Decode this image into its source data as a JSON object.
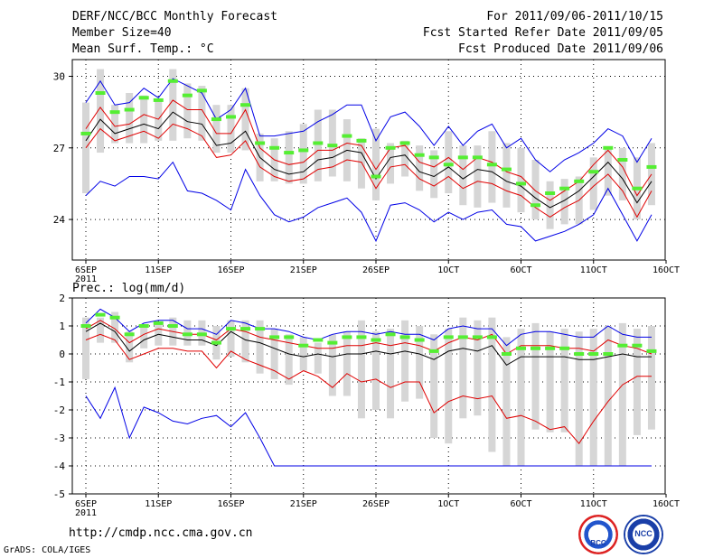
{
  "header": {
    "left": [
      "DERF/NCC/BCC Monthly Forecast",
      "Member Size=40",
      "Mean Surf. Temp.: °C"
    ],
    "right": [
      "For 2011/09/06-2011/10/15",
      "Fcst Started Refer Date 2011/09/05",
      "Fcst Produced Date 2011/09/06"
    ]
  },
  "footer": {
    "url": "http://cmdp.ncc.cma.gov.cn",
    "credit": "GrADS: COLA/IGES"
  },
  "logos": [
    {
      "icon": "bcc-logo-icon",
      "label": "BCC"
    },
    {
      "icon": "ncc-logo-icon",
      "label": "NCC"
    }
  ],
  "colors": {
    "mean": "#000000",
    "sd": "#e00000",
    "extreme": "#0000e6",
    "bar": "#d6d6d6",
    "dash": "#55ee33",
    "grid": "#000000"
  },
  "chart_data": [
    {
      "type": "line",
      "title": "Mean Surf. Temp.: °C",
      "x_tick_labels": [
        "6SEP",
        "11SEP",
        "16SEP",
        "21SEP",
        "26SEP",
        "1OCT",
        "6OCT",
        "11OCT",
        "16OCT"
      ],
      "x_sub_label": "2011",
      "x_tick_days": [
        0,
        5,
        10,
        15,
        20,
        25,
        30,
        35,
        40
      ],
      "xlim": [
        0,
        40
      ],
      "ylim": [
        22.3,
        30.7
      ],
      "y_ticks": [
        24,
        27,
        30
      ],
      "days": [
        0,
        1,
        2,
        3,
        4,
        5,
        6,
        7,
        8,
        9,
        10,
        11,
        12,
        13,
        14,
        15,
        16,
        17,
        18,
        19,
        20,
        21,
        22,
        23,
        24,
        25,
        26,
        27,
        28,
        29,
        30,
        31,
        32,
        33,
        34,
        35,
        36,
        37,
        38,
        39
      ],
      "series": [
        {
          "name": "max",
          "color": "#0000e6",
          "values": [
            28.9,
            29.8,
            28.8,
            28.9,
            29.5,
            29.1,
            29.9,
            29.6,
            29.3,
            28.2,
            28.6,
            29.5,
            27.5,
            27.5,
            27.6,
            27.7,
            28.1,
            28.4,
            28.8,
            28.8,
            27.3,
            28.3,
            28.5,
            27.9,
            27.1,
            27.9,
            27.1,
            27.7,
            28.0,
            27.0,
            27.4,
            26.5,
            26.0,
            26.5,
            26.8,
            27.2,
            27.8,
            27.5,
            26.4,
            27.4
          ]
        },
        {
          "name": "mean+sd",
          "color": "#e00000",
          "values": [
            27.8,
            28.7,
            27.9,
            28.0,
            28.4,
            28.2,
            29.0,
            28.6,
            28.6,
            27.6,
            27.6,
            28.6,
            27.0,
            26.5,
            26.3,
            26.4,
            26.9,
            26.9,
            27.2,
            27.1,
            26.1,
            27.0,
            27.1,
            26.4,
            26.2,
            26.6,
            26.1,
            26.6,
            26.4,
            26.0,
            25.8,
            25.2,
            24.8,
            25.2,
            25.6,
            26.3,
            26.9,
            26.2,
            25.0,
            25.9
          ]
        },
        {
          "name": "mean",
          "color": "#000000",
          "values": [
            27.3,
            28.2,
            27.6,
            27.8,
            28.0,
            27.8,
            28.5,
            28.1,
            28.0,
            27.1,
            27.2,
            27.7,
            26.6,
            26.1,
            25.9,
            26.0,
            26.5,
            26.6,
            26.9,
            26.8,
            25.7,
            26.6,
            26.7,
            26.0,
            25.8,
            26.2,
            25.7,
            26.1,
            26.0,
            25.6,
            25.4,
            24.9,
            24.5,
            24.8,
            25.2,
            25.8,
            26.4,
            25.7,
            24.7,
            25.6
          ]
        },
        {
          "name": "mean-sd",
          "color": "#e00000",
          "values": [
            27.0,
            27.8,
            27.3,
            27.5,
            27.7,
            27.4,
            28.0,
            27.8,
            27.5,
            26.6,
            26.7,
            27.3,
            26.2,
            25.8,
            25.6,
            25.7,
            26.1,
            26.2,
            26.5,
            26.4,
            25.3,
            26.2,
            26.3,
            25.7,
            25.4,
            25.8,
            25.3,
            25.6,
            25.5,
            25.2,
            25.0,
            24.5,
            24.1,
            24.5,
            24.8,
            25.4,
            25.9,
            25.2,
            24.1,
            25.2
          ]
        },
        {
          "name": "min",
          "color": "#0000e6",
          "values": [
            25.0,
            25.6,
            25.4,
            25.8,
            25.8,
            25.7,
            26.4,
            25.2,
            25.1,
            24.8,
            24.4,
            26.1,
            25.0,
            24.2,
            23.9,
            24.1,
            24.5,
            24.7,
            24.9,
            24.3,
            23.1,
            24.6,
            24.7,
            24.4,
            23.9,
            24.3,
            24.0,
            24.3,
            24.4,
            23.8,
            23.7,
            23.1,
            23.3,
            23.5,
            23.8,
            24.2,
            25.3,
            24.2,
            23.1,
            24.2
          ]
        },
        {
          "name": "bar_top",
          "color": "#d6d6d6",
          "values": [
            28.9,
            30.3,
            28.8,
            29.3,
            29.2,
            29.0,
            30.3,
            29.7,
            29.6,
            28.8,
            28.8,
            29.5,
            27.6,
            27.4,
            27.7,
            28.0,
            28.6,
            28.6,
            28.2,
            27.4,
            27.8,
            27.2,
            27.3,
            27.1,
            26.9,
            27.7,
            27.1,
            27.1,
            27.7,
            27.2,
            27.0,
            26.5,
            25.6,
            25.7,
            25.8,
            26.6,
            27.0,
            27.0,
            26.6,
            27.2
          ]
        },
        {
          "name": "bar_bottom",
          "color": "#d6d6d6",
          "values": [
            25.1,
            26.8,
            27.2,
            27.2,
            27.2,
            27.3,
            27.3,
            27.4,
            27.3,
            26.8,
            26.8,
            26.9,
            25.6,
            25.6,
            25.5,
            25.5,
            25.6,
            25.8,
            25.6,
            25.3,
            24.8,
            25.5,
            25.8,
            25.2,
            24.9,
            25.1,
            24.6,
            24.5,
            24.7,
            24.5,
            24.3,
            24.0,
            23.6,
            23.8,
            23.8,
            24.4,
            25.0,
            24.8,
            24.0,
            24.6
          ]
        },
        {
          "name": "hindcast_dash",
          "color": "#55ee33",
          "values": [
            27.6,
            29.3,
            28.5,
            28.6,
            29.1,
            29.0,
            29.8,
            29.2,
            29.4,
            28.2,
            28.3,
            28.8,
            27.2,
            27.0,
            26.8,
            26.9,
            27.2,
            27.1,
            27.5,
            27.3,
            25.8,
            27.0,
            27.2,
            26.7,
            26.6,
            26.3,
            26.6,
            26.6,
            26.3,
            26.1,
            25.5,
            24.6,
            25.1,
            25.3,
            25.6,
            26.0,
            27.0,
            26.5,
            25.3,
            26.2
          ]
        }
      ]
    },
    {
      "type": "line",
      "title": "Prec.: log(mm/d)",
      "x_tick_labels": [
        "6SEP",
        "11SEP",
        "16SEP",
        "21SEP",
        "26SEP",
        "1OCT",
        "6OCT",
        "11OCT",
        "16OCT"
      ],
      "x_sub_label": "2011",
      "x_tick_days": [
        0,
        5,
        10,
        15,
        20,
        25,
        30,
        35,
        40
      ],
      "xlim": [
        0,
        40
      ],
      "ylim": [
        -5,
        2
      ],
      "y_ticks": [
        -5,
        -4,
        -3,
        -2,
        -1,
        0,
        1,
        2
      ],
      "days": [
        0,
        1,
        2,
        3,
        4,
        5,
        6,
        7,
        8,
        9,
        10,
        11,
        12,
        13,
        14,
        15,
        16,
        17,
        18,
        19,
        20,
        21,
        22,
        23,
        24,
        25,
        26,
        27,
        28,
        29,
        30,
        31,
        32,
        33,
        34,
        35,
        36,
        37,
        38,
        39
      ],
      "series": [
        {
          "name": "max",
          "color": "#0000e6",
          "values": [
            1.1,
            1.6,
            1.3,
            0.8,
            1.1,
            1.2,
            1.2,
            0.9,
            0.9,
            0.7,
            1.2,
            1.1,
            0.9,
            0.9,
            0.8,
            0.6,
            0.5,
            0.7,
            0.8,
            0.8,
            0.7,
            0.8,
            0.7,
            0.7,
            0.5,
            0.9,
            1.0,
            0.9,
            0.9,
            0.3,
            0.7,
            0.8,
            0.8,
            0.7,
            0.6,
            0.6,
            1.0,
            0.7,
            0.6,
            0.6
          ]
        },
        {
          "name": "mean+sd",
          "color": "#e00000",
          "values": [
            0.9,
            1.2,
            0.9,
            0.4,
            0.7,
            0.9,
            0.8,
            0.7,
            0.7,
            0.5,
            0.9,
            0.8,
            0.6,
            0.5,
            0.4,
            0.3,
            0.2,
            0.2,
            0.3,
            0.3,
            0.4,
            0.3,
            0.4,
            0.3,
            0.1,
            0.4,
            0.6,
            0.5,
            0.7,
            0.0,
            0.3,
            0.3,
            0.3,
            0.2,
            0.2,
            0.1,
            0.5,
            0.3,
            0.2,
            0.0
          ]
        },
        {
          "name": "mean",
          "color": "#000000",
          "values": [
            0.8,
            1.1,
            0.8,
            0.1,
            0.5,
            0.7,
            0.6,
            0.5,
            0.5,
            0.3,
            0.8,
            0.5,
            0.4,
            0.2,
            0.0,
            -0.1,
            0.0,
            -0.1,
            0.0,
            0.0,
            0.1,
            0.0,
            0.1,
            0.0,
            -0.2,
            0.1,
            0.2,
            0.1,
            0.3,
            -0.4,
            -0.1,
            -0.1,
            -0.1,
            -0.1,
            -0.2,
            -0.2,
            -0.1,
            0.0,
            -0.1,
            -0.1
          ]
        },
        {
          "name": "mean-sd",
          "color": "#e00000",
          "values": [
            0.5,
            0.7,
            0.5,
            -0.2,
            0.0,
            0.2,
            0.2,
            0.1,
            0.1,
            -0.5,
            0.1,
            -0.2,
            -0.4,
            -0.6,
            -0.9,
            -0.6,
            -0.8,
            -1.2,
            -0.7,
            -1.0,
            -0.9,
            -1.2,
            -1.0,
            -1.0,
            -2.1,
            -1.7,
            -1.5,
            -1.6,
            -1.5,
            -2.3,
            -2.2,
            -2.4,
            -2.7,
            -2.6,
            -3.2,
            -2.4,
            -1.7,
            -1.1,
            -0.8,
            -0.8
          ]
        },
        {
          "name": "min",
          "color": "#0000e6",
          "values": [
            -1.5,
            -2.3,
            -1.2,
            -3.0,
            -1.9,
            -2.1,
            -2.4,
            -2.5,
            -2.3,
            -2.2,
            -2.6,
            -2.1,
            -3.0,
            -4.0,
            -4.0,
            -4.0,
            -4.0,
            -4.0,
            -4.0,
            -4.0,
            -4.0,
            -4.0,
            -4.0,
            -4.0,
            -4.0,
            -4.0,
            -4.0,
            -4.0,
            -4.0,
            -4.0,
            -4.0,
            -4.0,
            -4.0,
            -4.0,
            -4.0,
            -4.0,
            -4.0,
            -4.0,
            -4.0,
            -4.0
          ]
        },
        {
          "name": "bar_top",
          "color": "#d6d6d6",
          "values": [
            1.3,
            1.3,
            1.5,
            0.8,
            1.0,
            1.1,
            1.3,
            1.2,
            1.2,
            1.0,
            1.2,
            1.2,
            1.2,
            0.9,
            0.7,
            0.6,
            0.4,
            0.7,
            0.8,
            1.2,
            0.8,
            0.9,
            1.2,
            1.0,
            0.7,
            0.9,
            1.3,
            1.2,
            1.3,
            0.6,
            0.9,
            1.1,
            0.8,
            0.9,
            0.8,
            0.9,
            1.0,
            1.1,
            0.9,
            1.0
          ]
        },
        {
          "name": "bar_bottom",
          "color": "#d6d6d6",
          "values": [
            -0.9,
            0.4,
            0.4,
            -0.3,
            0.2,
            0.3,
            0.3,
            0.3,
            0.3,
            -0.2,
            -0.1,
            -0.3,
            -0.7,
            -0.9,
            -1.1,
            -0.6,
            -0.7,
            -1.5,
            -1.5,
            -2.3,
            -2.0,
            -2.3,
            -1.7,
            -1.6,
            -3.0,
            -3.2,
            -2.3,
            -2.2,
            -3.5,
            -4.0,
            -4.0,
            -2.7,
            -2.8,
            -2.8,
            -4.0,
            -4.0,
            -4.0,
            -4.0,
            -2.9,
            -2.7
          ]
        },
        {
          "name": "hindcast_dash",
          "color": "#55ee33",
          "values": [
            1.0,
            1.4,
            1.3,
            0.7,
            1.0,
            1.1,
            1.0,
            0.7,
            0.7,
            0.4,
            0.9,
            0.9,
            0.9,
            0.6,
            0.6,
            0.3,
            0.5,
            0.4,
            0.6,
            0.6,
            0.5,
            0.7,
            0.6,
            0.5,
            0.1,
            0.6,
            0.6,
            0.6,
            0.6,
            0.0,
            0.2,
            0.2,
            0.2,
            0.2,
            0.0,
            0.0,
            0.0,
            0.3,
            0.3,
            0.1
          ]
        }
      ]
    }
  ]
}
